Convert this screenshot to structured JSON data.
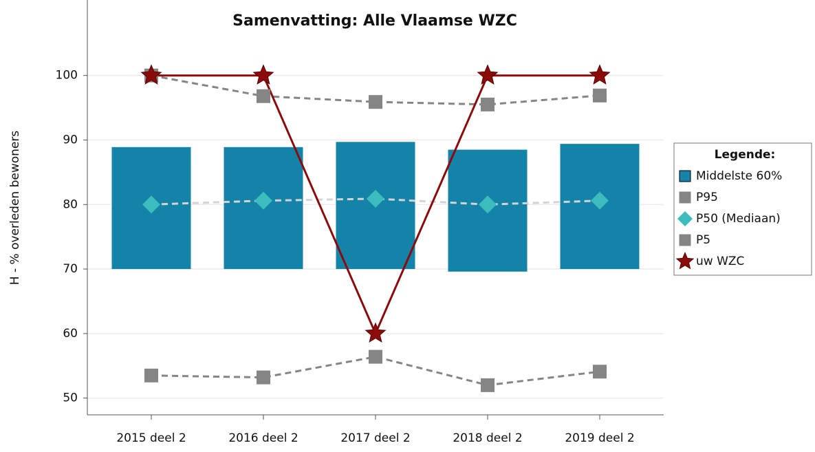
{
  "chart_data": {
    "type": "box-line",
    "title": "Samenvatting: Alle Vlaamse WZC",
    "ylabel": "H - % overleden bewoners",
    "categories": [
      "2015 deel 2",
      "2016 deel 2",
      "2017 deel 2",
      "2018 deel 2",
      "2019 deel 2"
    ],
    "ylim": [
      47.4,
      111.7
    ],
    "yticks": [
      50,
      60,
      70,
      80,
      90,
      100
    ],
    "grid": true,
    "legend_title": "Legende:",
    "box": {
      "name": "Middelste 60%",
      "color": "#1483a8",
      "low": [
        70,
        70,
        70,
        69.6,
        70
      ],
      "high": [
        88.9,
        88.9,
        89.7,
        88.5,
        89.4
      ]
    },
    "series": [
      {
        "name": "P95",
        "color": "#858585",
        "marker": "square",
        "line": "#858585",
        "dash": true,
        "values": [
          100,
          96.8,
          95.9,
          95.5,
          96.9
        ]
      },
      {
        "name": "P50 (Mediaan)",
        "color": "#3cbcbc",
        "marker": "diamond",
        "line": "#d4d4d4",
        "dash": true,
        "values": [
          80,
          80.6,
          80.9,
          80,
          80.6
        ]
      },
      {
        "name": "P5",
        "color": "#858585",
        "marker": "square",
        "line": "#858585",
        "dash": true,
        "values": [
          53.5,
          53.2,
          56.4,
          52,
          54.1
        ]
      },
      {
        "name": "uw WZC",
        "color": "#8b0a0a",
        "marker": "star",
        "line": "#8b0a0a",
        "dash": false,
        "values": [
          100,
          100,
          60,
          100,
          100
        ]
      }
    ]
  }
}
